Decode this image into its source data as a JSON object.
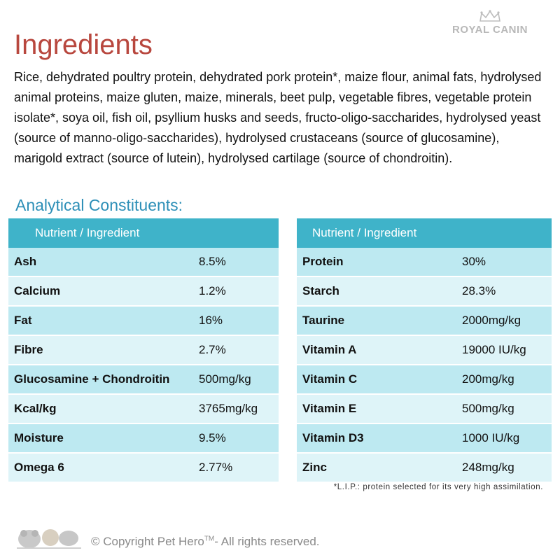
{
  "logo": {
    "brand": "ROYAL CANIN"
  },
  "title": "Ingredients",
  "ingredients_text": "Rice, dehydrated poultry protein, dehydrated pork protein*, maize flour, animal fats, hydrolysed animal proteins, maize gluten, maize, minerals, beet pulp, vegetable fibres, vegetable protein isolate*, soya oil, fish oil, psyllium husks and seeds, fructo-oligo-saccharides, hydrolysed yeast (source of manno-oligo-saccharides), hydrolysed crustaceans (source of glucosamine), marigold extract (source of lutein), hydrolysed cartilage (source of chondroitin).",
  "section_title": "Analytical Constituents:",
  "tables": {
    "left": {
      "header": [
        "Nutrient / Ingredient",
        ""
      ],
      "rows": [
        {
          "name": "Ash",
          "value": "8.5%"
        },
        {
          "name": "Calcium",
          "value": "1.2%"
        },
        {
          "name": "Fat",
          "value": "16%"
        },
        {
          "name": "Fibre",
          "value": "2.7%"
        },
        {
          "name": "Glucosamine + Chondroitin",
          "value": "500mg/kg"
        },
        {
          "name": "Kcal/kg",
          "value": "3765mg/kg"
        },
        {
          "name": "Moisture",
          "value": "9.5%"
        },
        {
          "name": "Omega 6",
          "value": "2.77%"
        }
      ]
    },
    "right": {
      "header": [
        "Nutrient / Ingredient",
        ""
      ],
      "rows": [
        {
          "name": "Protein",
          "value": "30%"
        },
        {
          "name": "Starch",
          "value": "28.3%"
        },
        {
          "name": "Taurine",
          "value": "2000mg/kg"
        },
        {
          "name": "Vitamin A",
          "value": "19000 IU/kg"
        },
        {
          "name": "Vitamin C",
          "value": "200mg/kg"
        },
        {
          "name": "Vitamin E",
          "value": "500mg/kg"
        },
        {
          "name": "Vitamin D3",
          "value": "1000 IU/kg"
        },
        {
          "name": "Zinc",
          "value": "248mg/kg"
        }
      ]
    }
  },
  "footnote": "*L.I.P.: protein selected for its very high assimilation.",
  "copyright": {
    "text": "© Copyright Pet Hero",
    "tm": "TM",
    "suffix": "- All rights reserved."
  },
  "colors": {
    "title": "#b8473e",
    "section": "#2d8fb7",
    "header_bg": "#3fb3c9",
    "row_dark": "#bde9f1",
    "row_light": "#def4f8"
  },
  "icons": {
    "logo": "crown-icon",
    "mascot": "pet-hero-mascot-logo"
  }
}
